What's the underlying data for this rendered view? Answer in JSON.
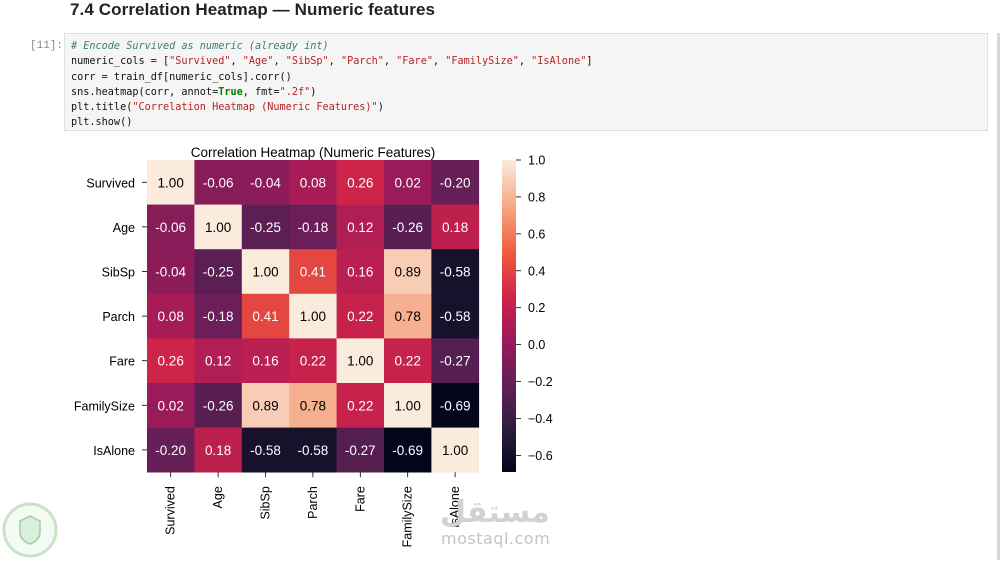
{
  "notebook": {
    "heading": "7.4 Correlation Heatmap — Numeric features",
    "prompt": "[11]:",
    "code_lines": [
      [
        {
          "t": "# Encode Survived as numeric (already int)",
          "c": "comment"
        }
      ],
      [
        {
          "t": "numeric_cols = [",
          "c": ""
        },
        {
          "t": "\"Survived\"",
          "c": "string"
        },
        {
          "t": ", ",
          "c": ""
        },
        {
          "t": "\"Age\"",
          "c": "string"
        },
        {
          "t": ", ",
          "c": ""
        },
        {
          "t": "\"SibSp\"",
          "c": "string"
        },
        {
          "t": ", ",
          "c": ""
        },
        {
          "t": "\"Parch\"",
          "c": "string"
        },
        {
          "t": ", ",
          "c": ""
        },
        {
          "t": "\"Fare\"",
          "c": "string"
        },
        {
          "t": ", ",
          "c": ""
        },
        {
          "t": "\"FamilySize\"",
          "c": "string"
        },
        {
          "t": ", ",
          "c": ""
        },
        {
          "t": "\"IsAlone\"",
          "c": "string"
        },
        {
          "t": "]",
          "c": ""
        }
      ],
      [
        {
          "t": "corr = train_df[numeric_cols].corr()",
          "c": ""
        }
      ],
      [
        {
          "t": "sns.heatmap(corr, annot=",
          "c": ""
        },
        {
          "t": "True",
          "c": "kw"
        },
        {
          "t": ", fmt=",
          "c": ""
        },
        {
          "t": "\".2f\"",
          "c": "string"
        },
        {
          "t": ")",
          "c": ""
        }
      ],
      [
        {
          "t": "plt.title(",
          "c": ""
        },
        {
          "t": "\"Correlation Heatmap (Numeric Features)\"",
          "c": "string"
        },
        {
          "t": ")",
          "c": ""
        }
      ],
      [
        {
          "t": "plt.show()",
          "c": ""
        }
      ]
    ]
  },
  "chart_data": {
    "type": "heatmap",
    "title": "Correlation Heatmap (Numeric Features)",
    "labels": [
      "Survived",
      "Age",
      "SibSp",
      "Parch",
      "Fare",
      "FamilySize",
      "IsAlone"
    ],
    "values": [
      [
        1.0,
        -0.06,
        -0.04,
        0.08,
        0.26,
        0.02,
        -0.2
      ],
      [
        -0.06,
        1.0,
        -0.25,
        -0.18,
        0.12,
        -0.26,
        0.18
      ],
      [
        -0.04,
        -0.25,
        1.0,
        0.41,
        0.16,
        0.89,
        -0.58
      ],
      [
        0.08,
        -0.18,
        0.41,
        1.0,
        0.22,
        0.78,
        -0.58
      ],
      [
        0.26,
        0.12,
        0.16,
        0.22,
        1.0,
        0.22,
        -0.27
      ],
      [
        0.02,
        -0.26,
        0.89,
        0.78,
        0.22,
        1.0,
        -0.69
      ],
      [
        -0.2,
        0.18,
        -0.58,
        -0.58,
        -0.27,
        -0.69,
        1.0
      ]
    ],
    "colorbar": {
      "range": [
        -0.69,
        1.0
      ],
      "ticks": [
        1.0,
        0.8,
        0.6,
        0.4,
        0.2,
        0.0,
        -0.2,
        -0.4,
        -0.6
      ],
      "tick_labels": [
        "1.0",
        "0.8",
        "0.6",
        "0.4",
        "0.2",
        "0.0",
        "−0.2",
        "−0.4",
        "−0.6"
      ],
      "colormap": "rocket"
    },
    "annot_format": ".2f"
  },
  "watermark": {
    "text": "mostaql.com",
    "arabic": "مستقل"
  }
}
